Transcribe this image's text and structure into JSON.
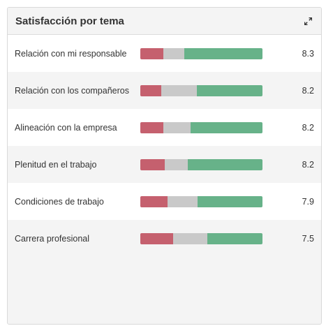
{
  "widget": {
    "title": "Satisfacción por tema",
    "expand_icon": "expand-arrows-icon"
  },
  "colors": {
    "negative": "#c5606e",
    "neutral": "#c9c9c9",
    "positive": "#67b289"
  },
  "topics": [
    {
      "label": "Relación con mi responsable",
      "score": "8.3",
      "distribution": {
        "negative": 0.19,
        "neutral": 0.17,
        "positive": 0.64
      }
    },
    {
      "label": "Relación con los compañeros",
      "score": "8.2",
      "distribution": {
        "negative": 0.17,
        "neutral": 0.29,
        "positive": 0.54
      }
    },
    {
      "label": "Alineación con la empresa",
      "score": "8.2",
      "distribution": {
        "negative": 0.19,
        "neutral": 0.22,
        "positive": 0.59
      }
    },
    {
      "label": "Plenitud en el trabajo",
      "score": "8.2",
      "distribution": {
        "negative": 0.2,
        "neutral": 0.19,
        "positive": 0.61
      }
    },
    {
      "label": "Condiciones de trabajo",
      "score": "7.9",
      "distribution": {
        "negative": 0.22,
        "neutral": 0.25,
        "positive": 0.53
      }
    },
    {
      "label": "Carrera profesional",
      "score": "7.5",
      "distribution": {
        "negative": 0.27,
        "neutral": 0.28,
        "positive": 0.45
      }
    }
  ]
}
